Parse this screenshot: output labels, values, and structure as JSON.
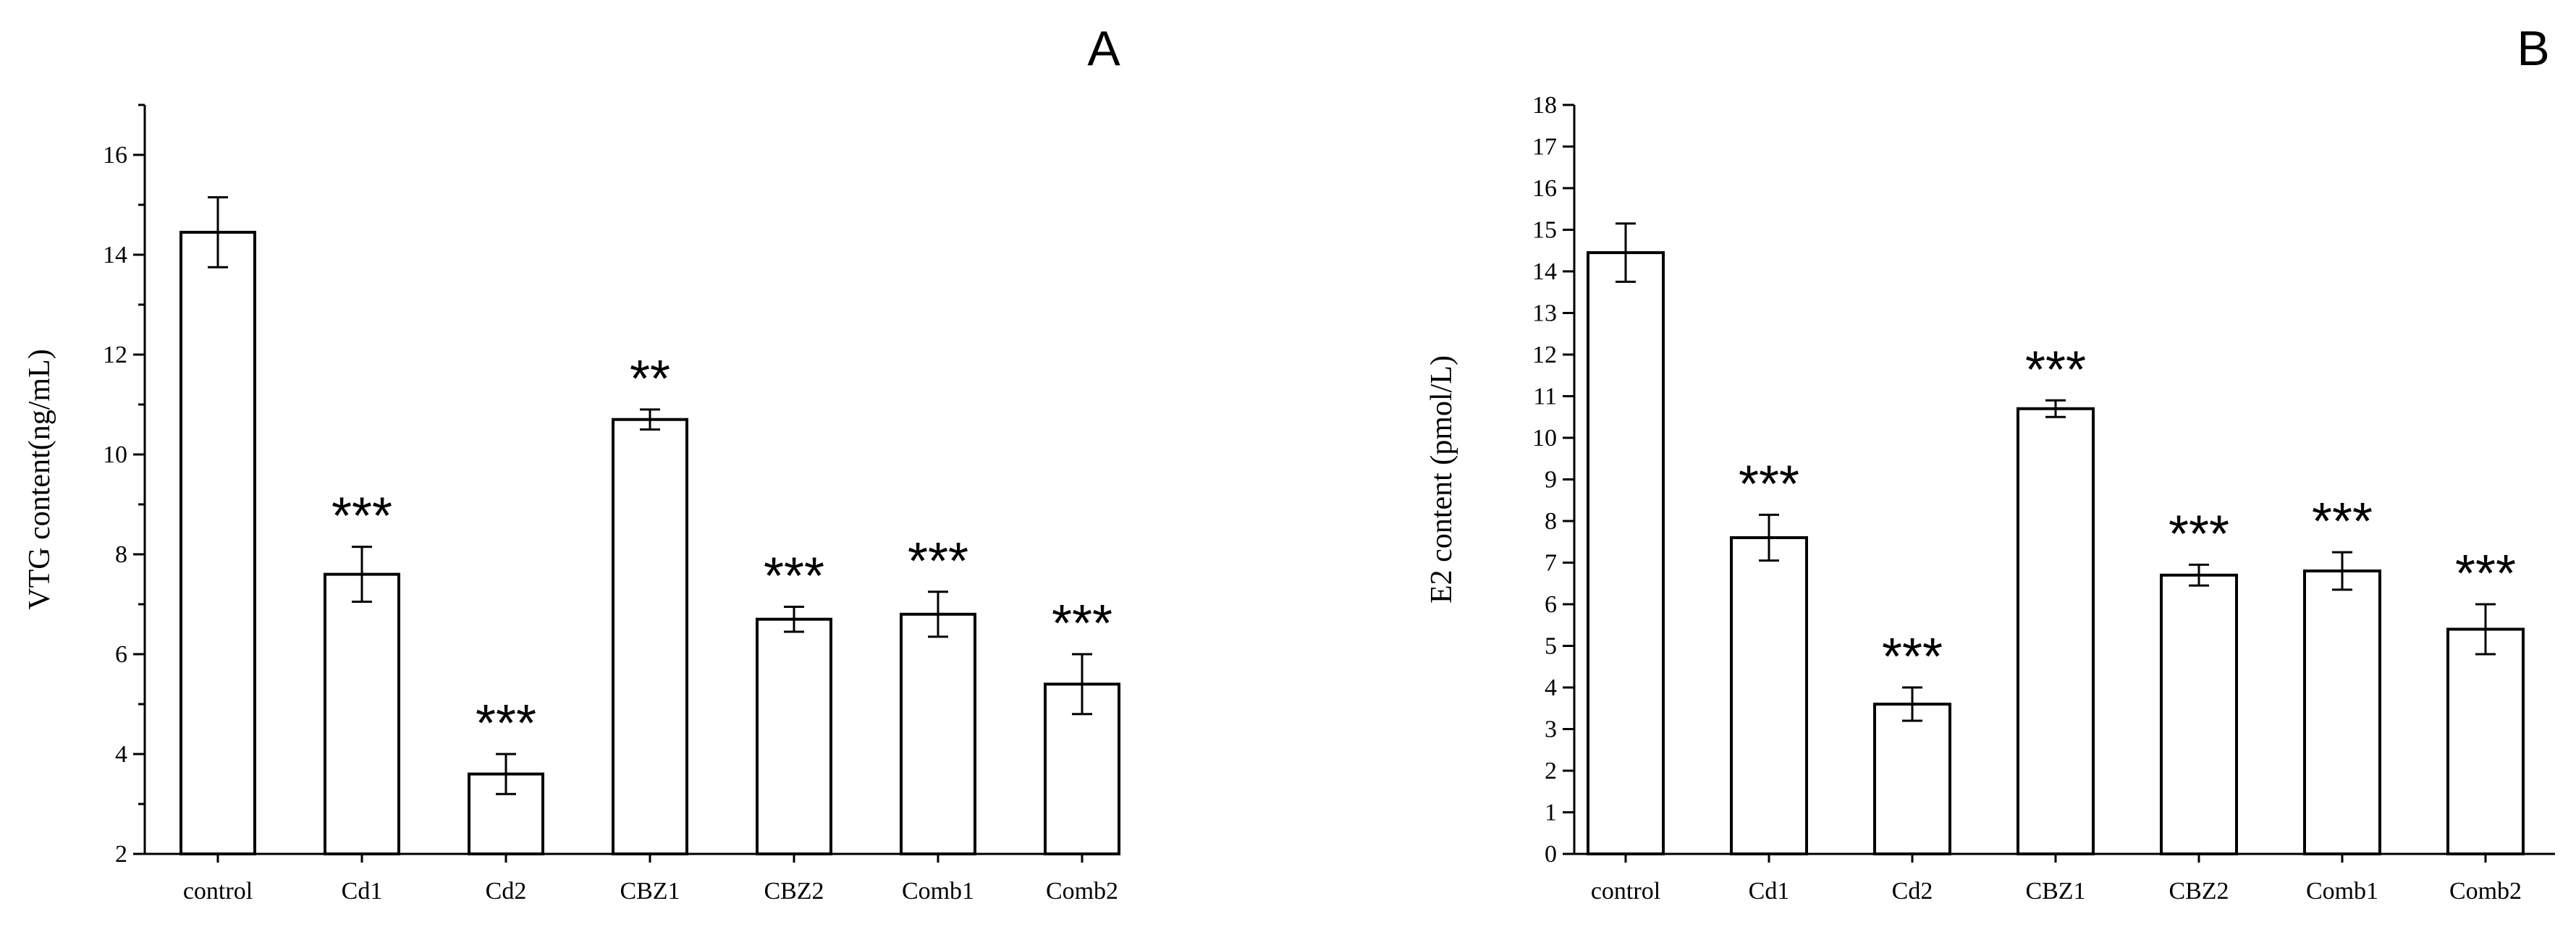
{
  "chart_data": [
    {
      "panel": "A",
      "type": "bar",
      "title": "",
      "xlabel": "",
      "ylabel": "VTG content(ng/mL)",
      "categories": [
        "control",
        "Cd1",
        "Cd2",
        "CBZ1",
        "CBZ2",
        "Comb1",
        "Comb2"
      ],
      "values": [
        14.45,
        7.6,
        3.6,
        10.7,
        6.7,
        6.8,
        5.4
      ],
      "errors": [
        0.7,
        0.55,
        0.4,
        0.2,
        0.25,
        0.45,
        0.6
      ],
      "significance": [
        "",
        "***",
        "***",
        "**",
        "***",
        "***",
        "***"
      ],
      "ylim": [
        2,
        17
      ],
      "yticks": [
        2,
        4,
        6,
        8,
        10,
        12,
        14,
        16
      ],
      "minor_step": 1,
      "grid": false,
      "legend": "none"
    },
    {
      "panel": "B",
      "type": "bar",
      "title": "",
      "xlabel": "",
      "ylabel": "E2 content (pmol/L)",
      "categories": [
        "control",
        "Cd1",
        "Cd2",
        "CBZ1",
        "CBZ2",
        "Comb1",
        "Comb2"
      ],
      "values": [
        14.45,
        7.6,
        3.6,
        10.7,
        6.7,
        6.8,
        5.4
      ],
      "errors": [
        0.7,
        0.55,
        0.4,
        0.2,
        0.25,
        0.45,
        0.6
      ],
      "significance": [
        "",
        "***",
        "***",
        "***",
        "***",
        "***",
        "***"
      ],
      "ylim": [
        0,
        18
      ],
      "yticks": [
        0,
        1,
        2,
        3,
        4,
        5,
        6,
        7,
        8,
        9,
        10,
        11,
        12,
        13,
        14,
        15,
        16,
        17,
        18
      ],
      "minor_step": 0,
      "grid": false,
      "legend": "none"
    }
  ]
}
